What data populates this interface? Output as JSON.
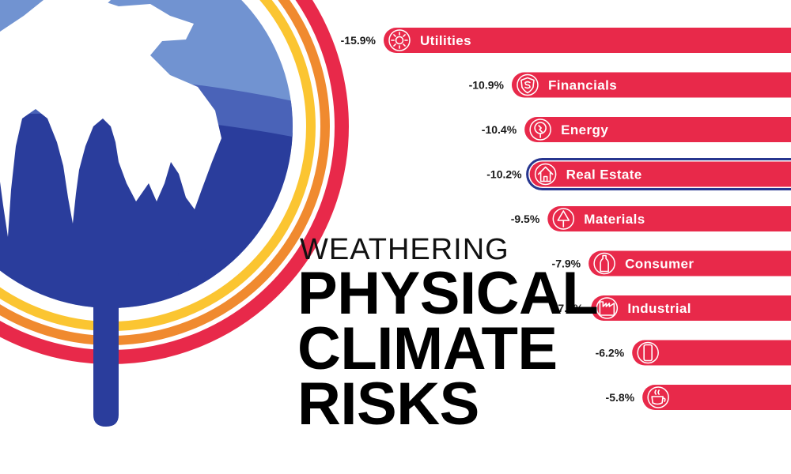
{
  "title": {
    "subtitle": "WEATHERING",
    "line1": "PHYSICAL",
    "line2": "CLIMATE",
    "line3": "RISKS"
  },
  "colors": {
    "bar": "#e8294a",
    "highlight_border": "#27368f",
    "ring_red": "#e8294a",
    "ring_orange": "#f08a2f",
    "ring_yellow": "#fbc531",
    "globe_blue_dark": "#2a3d9c",
    "globe_blue_light": "#6f8fd0"
  },
  "chart_data": {
    "type": "bar",
    "orientation": "horizontal",
    "unit": "%",
    "categories": [
      "Utilities",
      "Financials",
      "Energy",
      "Real Estate",
      "Materials",
      "Consumer",
      "Industrial",
      "",
      ""
    ],
    "values": [
      -15.9,
      -10.9,
      -10.4,
      -10.2,
      -9.5,
      -7.9,
      -7.8,
      -6.2,
      -5.8
    ],
    "value_labels": [
      "-15.9%",
      "-10.9%",
      "-10.4%",
      "-10.2%",
      "-9.5%",
      "-7.9%",
      "-7.8%",
      "-6.2%",
      "-5.8%"
    ],
    "icons": [
      "sun-icon",
      "shield-dollar-icon",
      "lightbulb-plug-icon",
      "house-icon",
      "tree-icon",
      "bottle-icon",
      "factory-icon",
      "phone-icon",
      "coffee-cup-icon"
    ],
    "highlighted": "Real Estate",
    "scale_max": 15.9
  }
}
